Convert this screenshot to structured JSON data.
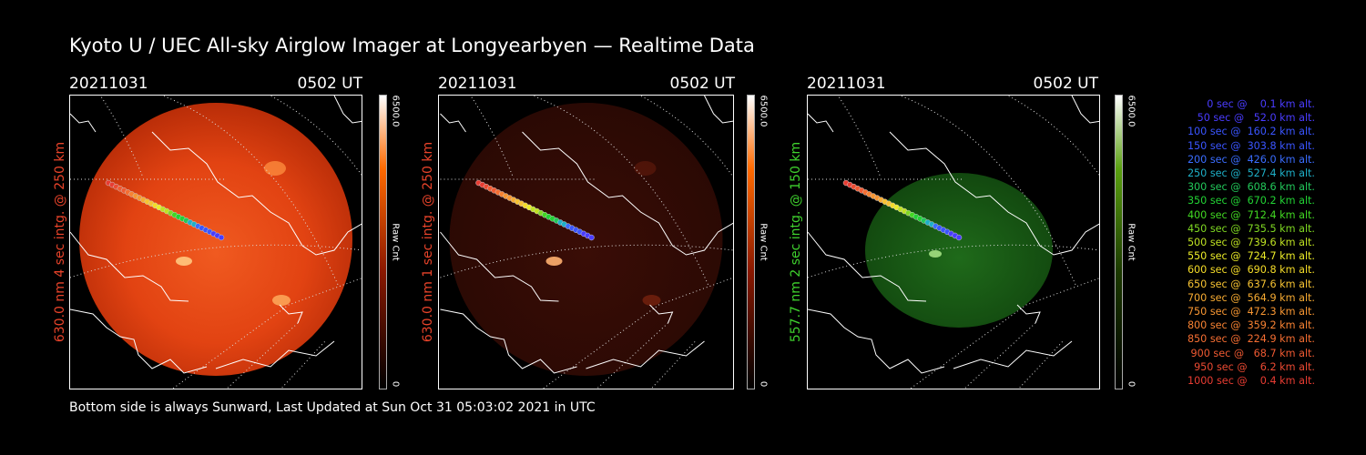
{
  "title": "Kyoto U / UEC All-sky Airglow Imager at Longyearbyen — Realtime Data",
  "footer": "Bottom side is always Sunward, Last Updated at Sun Oct 31 05:03:02 2021 in UTC",
  "panels": [
    {
      "date": "20211031",
      "time": "0502 UT",
      "side_label": "630.0 nm 4 sec intg. @ 250 km",
      "label_color": "#e8432a",
      "colorbar_max": "6500.0",
      "colorbar_min": "0",
      "colorbar_label": "Raw Cnt",
      "colormap": "red",
      "brightness": "bright"
    },
    {
      "date": "20211031",
      "time": "0502 UT",
      "side_label": "630.0 nm 1 sec intg. @ 250 km",
      "label_color": "#e8432a",
      "colorbar_max": "6500.0",
      "colorbar_min": "0",
      "colorbar_label": "Raw Cnt",
      "colormap": "red",
      "brightness": "dim"
    },
    {
      "date": "20211031",
      "time": "0502 UT",
      "side_label": "557.7 nm 2 sec intg. @ 150 km",
      "label_color": "#3fd22e",
      "colorbar_max": "6500.0",
      "colorbar_min": "0",
      "colorbar_label": "Raw Cnt",
      "colormap": "green",
      "brightness": "dim"
    }
  ],
  "legend": [
    {
      "text": "0 sec @    0.1 km alt.",
      "color": "#4a3cff"
    },
    {
      "text": "50 sec @   52.0 km alt.",
      "color": "#4a3cff"
    },
    {
      "text": "100 sec @  160.2 km alt.",
      "color": "#3a55ff"
    },
    {
      "text": "150 sec @  303.8 km alt.",
      "color": "#3a55ff"
    },
    {
      "text": "200 sec @  426.0 km alt.",
      "color": "#3a6dff"
    },
    {
      "text": "250 sec @  527.4 km alt.",
      "color": "#1eb0c8"
    },
    {
      "text": "300 sec @  608.6 km alt.",
      "color": "#22c85a"
    },
    {
      "text": "350 sec @  670.2 km alt.",
      "color": "#22d234"
    },
    {
      "text": "400 sec @  712.4 km alt.",
      "color": "#42d822"
    },
    {
      "text": "450 sec @  735.5 km alt.",
      "color": "#7fd822"
    },
    {
      "text": "500 sec @  739.6 km alt.",
      "color": "#bfe222"
    },
    {
      "text": "550 sec @  724.7 km alt.",
      "color": "#ecec28"
    },
    {
      "text": "600 sec @  690.8 km alt.",
      "color": "#f5dc28"
    },
    {
      "text": "650 sec @  637.6 km alt.",
      "color": "#f7c332"
    },
    {
      "text": "700 sec @  564.9 km alt.",
      "color": "#f7ab32"
    },
    {
      "text": "750 sec @  472.3 km alt.",
      "color": "#f79632"
    },
    {
      "text": "800 sec @  359.2 km alt.",
      "color": "#f78232"
    },
    {
      "text": "850 sec @  224.9 km alt.",
      "color": "#f56e32"
    },
    {
      "text": "900 sec @   68.7 km alt.",
      "color": "#f05a32"
    },
    {
      "text": "950 sec @    6.2 km alt.",
      "color": "#ec4a32"
    },
    {
      "text": "1000 sec @    0.4 km alt.",
      "color": "#e83c32"
    }
  ]
}
